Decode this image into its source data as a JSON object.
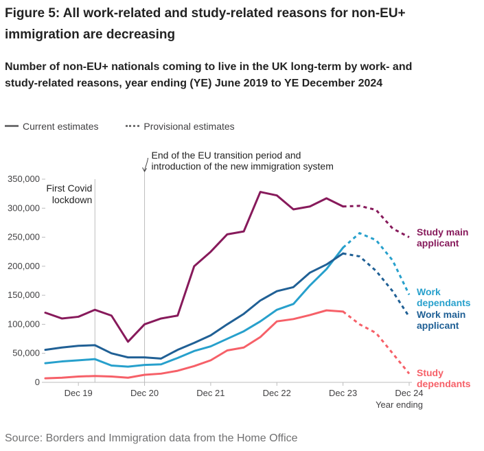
{
  "figure": {
    "title": "Figure 5: All work-related and study-related reasons for non-EU+ immigration are decreasing",
    "subtitle": "Number of non-EU+ nationals coming to live in the UK long-term by work- and study-related reasons, year ending (YE) June 2019 to YE December 2024",
    "legend": {
      "current": "Current estimates",
      "provisional": "Provisional estimates"
    },
    "source": "Source: Borders and Immigration data from the Home Office"
  },
  "chart_data": {
    "type": "line",
    "title": "Figure 5: All work-related and study-related reasons for non-EU+ immigration are decreasing",
    "subtitle": "Number of non-EU+ nationals coming to live in the UK long-term by work- and study-related reasons, year ending (YE) June 2019 to YE December 2024",
    "xlabel": "Year ending",
    "ylabel": "",
    "x": [
      "Jun 19",
      "Sep 19",
      "Dec 19",
      "Mar 20",
      "Jun 20",
      "Sep 20",
      "Dec 20",
      "Mar 21",
      "Jun 21",
      "Sep 21",
      "Dec 21",
      "Mar 22",
      "Jun 22",
      "Sep 22",
      "Dec 22",
      "Mar 23",
      "Jun 23",
      "Sep 23",
      "Dec 23",
      "Mar 24",
      "Jun 24",
      "Sep 24",
      "Dec 24"
    ],
    "x_tick_labels": [
      "Dec 19",
      "Dec 20",
      "Dec 21",
      "Dec 22",
      "Dec 23",
      "Dec 24"
    ],
    "ylim": [
      0,
      350000
    ],
    "y_ticks": [
      0,
      50000,
      100000,
      150000,
      200000,
      250000,
      300000,
      350000
    ],
    "y_tick_labels": [
      "0",
      "50,000",
      "100,000",
      "150,000",
      "200,000",
      "250,000",
      "300,000",
      "350,000"
    ],
    "provisional_from": "Dec 23",
    "grid": false,
    "series": [
      {
        "name": "Study main applicant",
        "color": "#871a5b",
        "values": [
          120000,
          110000,
          113000,
          125000,
          115000,
          70000,
          100000,
          110000,
          115000,
          200000,
          225000,
          255000,
          260000,
          328000,
          322000,
          298000,
          303000,
          317000,
          303000,
          304000,
          297000,
          265000,
          250000
        ]
      },
      {
        "name": "Work dependants",
        "color": "#27a0cc",
        "values": [
          33000,
          36000,
          38000,
          40000,
          29000,
          27000,
          30000,
          31000,
          42000,
          54000,
          62000,
          75000,
          88000,
          105000,
          125000,
          135000,
          167000,
          195000,
          232000,
          257000,
          245000,
          210000,
          151000
        ]
      },
      {
        "name": "Work main applicant",
        "color": "#206095",
        "values": [
          56000,
          60000,
          63000,
          64000,
          50000,
          43000,
          43000,
          41000,
          56000,
          68000,
          81000,
          100000,
          118000,
          141000,
          157000,
          164000,
          189000,
          203000,
          222000,
          217000,
          192000,
          157000,
          113000
        ]
      },
      {
        "name": "Study dependants",
        "color": "#f66068",
        "values": [
          7000,
          8000,
          10000,
          11000,
          10000,
          8000,
          13000,
          15000,
          20000,
          28000,
          38000,
          55000,
          60000,
          78000,
          105000,
          109000,
          116000,
          124000,
          122000,
          100000,
          85000,
          50000,
          15000
        ]
      }
    ],
    "series_label_lines": [
      [
        "Study main",
        "applicant"
      ],
      [
        "Work",
        "dependants"
      ],
      [
        "Work main",
        "applicant"
      ],
      [
        "Study",
        "dependants"
      ]
    ],
    "annotations": [
      {
        "at": "Mar 20",
        "lines": [
          "First Covid",
          "lockdown"
        ]
      },
      {
        "at": "Dec 20",
        "lines": [
          "End of the EU transition period and",
          "introduction of the new immigration system"
        ]
      }
    ]
  }
}
